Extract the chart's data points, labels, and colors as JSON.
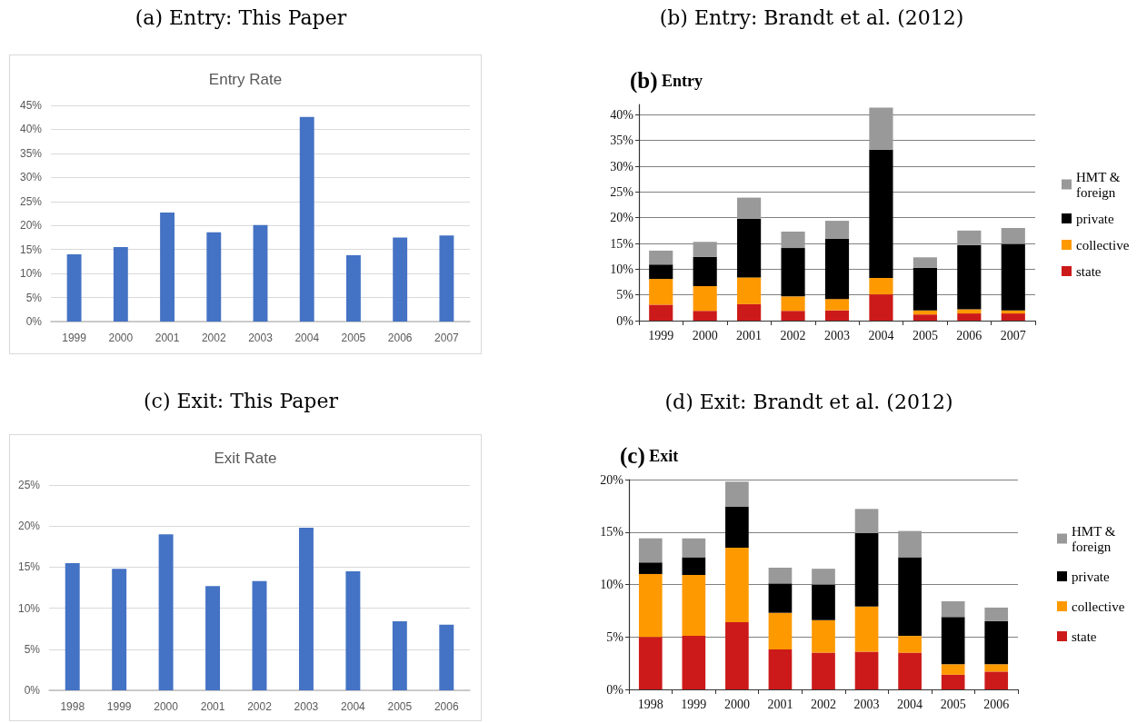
{
  "chart_data": [
    {
      "type": "bar",
      "title": "(a) Entry: This Paper",
      "subtitle": "Entry Rate",
      "categories": [
        "1999",
        "2000",
        "2001",
        "2002",
        "2003",
        "2004",
        "2005",
        "2006",
        "2007"
      ],
      "values": [
        14.0,
        15.5,
        22.7,
        18.6,
        20.1,
        42.6,
        13.8,
        17.5,
        17.9
      ],
      "color": "#4472c4",
      "ylim": [
        0,
        45
      ],
      "yticks": [
        {
          "value": 0,
          "label": "0%"
        },
        {
          "value": 5,
          "label": "5%"
        },
        {
          "value": 10,
          "label": "10%"
        },
        {
          "value": 15,
          "label": "15%"
        },
        {
          "value": 20,
          "label": "20%"
        },
        {
          "value": 25,
          "label": "25%"
        },
        {
          "value": 30,
          "label": "30%"
        },
        {
          "value": 35,
          "label": "35%"
        },
        {
          "value": 40,
          "label": "40%"
        },
        {
          "value": 45,
          "label": "45%"
        }
      ],
      "grid": "y"
    },
    {
      "type": "bar",
      "title": "(b) Entry: Brandt et al. (2012)",
      "subtitle": "(b) Entry",
      "categories": [
        "1999",
        "2000",
        "2001",
        "2002",
        "2003",
        "2004",
        "2005",
        "2006",
        "2007"
      ],
      "stacked": true,
      "series": [
        {
          "name": "state",
          "color": "#cc1a1a",
          "values": [
            3.1,
            1.9,
            3.2,
            1.9,
            2.0,
            5.1,
            1.2,
            1.4,
            1.4
          ]
        },
        {
          "name": "collective",
          "color": "#ff9900",
          "values": [
            5.0,
            4.8,
            5.2,
            2.8,
            2.2,
            3.2,
            0.8,
            0.8,
            0.6
          ]
        },
        {
          "name": "private",
          "color": "#000000",
          "values": [
            2.8,
            5.7,
            11.4,
            9.4,
            11.7,
            24.9,
            8.3,
            12.5,
            12.9
          ]
        },
        {
          "name": "HMT & foreign",
          "color": "#999999",
          "values": [
            2.7,
            2.9,
            4.1,
            3.2,
            3.5,
            8.2,
            2.0,
            2.8,
            3.1
          ]
        }
      ],
      "ylim": [
        0,
        42
      ],
      "yticks": [
        {
          "value": 0,
          "label": "0%"
        },
        {
          "value": 5,
          "label": "5%"
        },
        {
          "value": 10,
          "label": "10%"
        },
        {
          "value": 15,
          "label": "15%"
        },
        {
          "value": 20,
          "label": "20%"
        },
        {
          "value": 25,
          "label": "25%"
        },
        {
          "value": 30,
          "label": "30%"
        },
        {
          "value": 35,
          "label": "35%"
        },
        {
          "value": 40,
          "label": "40%"
        }
      ],
      "grid": "y",
      "legend": "right"
    },
    {
      "type": "bar",
      "title": "(c) Exit: This Paper",
      "subtitle": "Exit Rate",
      "categories": [
        "1998",
        "1999",
        "2000",
        "2001",
        "2002",
        "2003",
        "2004",
        "2005",
        "2006"
      ],
      "values": [
        15.5,
        14.8,
        19.0,
        12.7,
        13.3,
        19.8,
        14.5,
        8.4,
        8.0
      ],
      "color": "#4472c4",
      "ylim": [
        0,
        25
      ],
      "yticks": [
        {
          "value": 0,
          "label": "0%"
        },
        {
          "value": 5,
          "label": "5%"
        },
        {
          "value": 10,
          "label": "10%"
        },
        {
          "value": 15,
          "label": "15%"
        },
        {
          "value": 20,
          "label": "20%"
        },
        {
          "value": 25,
          "label": "25%"
        }
      ],
      "grid": "y"
    },
    {
      "type": "bar",
      "title": "(d) Exit: Brandt et al. (2012)",
      "subtitle": "(c) Exit",
      "categories": [
        "1998",
        "1999",
        "2000",
        "2001",
        "2002",
        "2003",
        "2004",
        "2005",
        "2006"
      ],
      "stacked": true,
      "series": [
        {
          "name": "state",
          "color": "#cc1a1a",
          "values": [
            5.0,
            5.1,
            6.4,
            3.8,
            3.5,
            3.6,
            3.5,
            1.4,
            1.7
          ]
        },
        {
          "name": "collective",
          "color": "#ff9900",
          "values": [
            6.0,
            5.8,
            7.1,
            3.5,
            3.1,
            4.3,
            1.6,
            1.0,
            0.7
          ]
        },
        {
          "name": "private",
          "color": "#000000",
          "values": [
            1.1,
            1.7,
            3.9,
            2.8,
            3.4,
            7.0,
            7.5,
            4.5,
            4.1
          ]
        },
        {
          "name": "HMT & foreign",
          "color": "#999999",
          "values": [
            2.3,
            1.8,
            2.4,
            1.5,
            1.5,
            2.3,
            2.5,
            1.5,
            1.3
          ]
        }
      ],
      "ylim": [
        0,
        20
      ],
      "yticks": [
        {
          "value": 0,
          "label": "0%"
        },
        {
          "value": 5,
          "label": "5%"
        },
        {
          "value": 10,
          "label": "10%"
        },
        {
          "value": 15,
          "label": "15%"
        },
        {
          "value": 20,
          "label": "20%"
        }
      ],
      "grid": "y",
      "legend": "right"
    }
  ]
}
